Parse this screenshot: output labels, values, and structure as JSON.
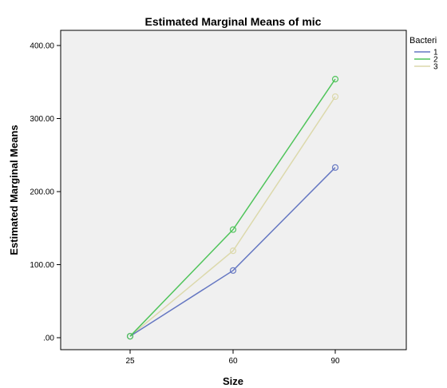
{
  "chart_data": {
    "type": "line",
    "title": "Estimated Marginal Means of mic",
    "xlabel": "Size",
    "ylabel": "Estimated Marginal Means",
    "categories": [
      "25",
      "60",
      "90"
    ],
    "y_ticks": [
      ".00",
      "100.00",
      "200.00",
      "300.00",
      "400.00"
    ],
    "ylim": [
      0,
      400
    ],
    "legend_title": "Bacteri",
    "legend_position": "right",
    "grid": false,
    "series": [
      {
        "name": "1",
        "color": "#6577c2",
        "values": [
          2,
          92,
          233
        ]
      },
      {
        "name": "2",
        "color": "#4fc45a",
        "values": [
          2,
          148,
          354
        ]
      },
      {
        "name": "3",
        "color": "#dcd9ac",
        "values": [
          2,
          119,
          330
        ]
      }
    ]
  }
}
